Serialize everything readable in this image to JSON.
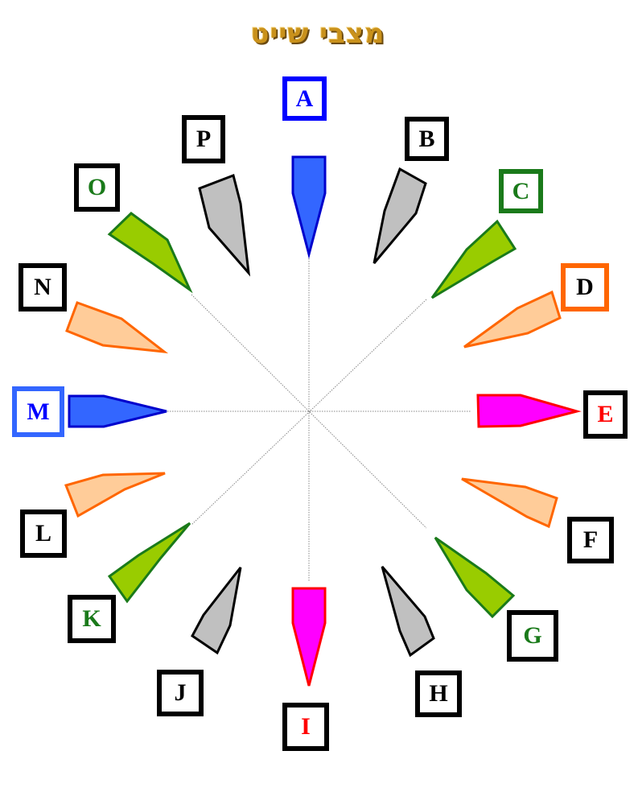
{
  "title": "מצבי שייט",
  "colors": {
    "blue": "#3366ff",
    "gray": "#c0c0c0",
    "green": "#99cc00",
    "green_stroke": "#1a7a1a",
    "orange_fill": "#ffcc99",
    "orange_stroke": "#ff6600",
    "magenta": "#ff00ff",
    "red": "#ff0000",
    "black": "#000000"
  },
  "positions": [
    {
      "letter": "A",
      "letter_color": "#0000ff",
      "box_color": "#0000ff",
      "fill": "#3366ff",
      "stroke": "#0000cc"
    },
    {
      "letter": "B",
      "letter_color": "#000000",
      "box_color": "#000000",
      "fill": "#c0c0c0",
      "stroke": "#000000"
    },
    {
      "letter": "C",
      "letter_color": "#1a7a1a",
      "box_color": "#1a7a1a",
      "fill": "#99cc00",
      "stroke": "#1a7a1a"
    },
    {
      "letter": "D",
      "letter_color": "#000000",
      "box_color": "#ff6600",
      "fill": "#ffcc99",
      "stroke": "#ff6600"
    },
    {
      "letter": "E",
      "letter_color": "#ff0000",
      "box_color": "#000000",
      "fill": "#ff00ff",
      "stroke": "#ff0000"
    },
    {
      "letter": "F",
      "letter_color": "#000000",
      "box_color": "#000000",
      "fill": "#ffcc99",
      "stroke": "#ff6600"
    },
    {
      "letter": "G",
      "letter_color": "#1a7a1a",
      "box_color": "#000000",
      "fill": "#99cc00",
      "stroke": "#1a7a1a"
    },
    {
      "letter": "H",
      "letter_color": "#000000",
      "box_color": "#000000",
      "fill": "#c0c0c0",
      "stroke": "#000000"
    },
    {
      "letter": "I",
      "letter_color": "#ff0000",
      "box_color": "#000000",
      "fill": "#ff00ff",
      "stroke": "#ff0000"
    },
    {
      "letter": "J",
      "letter_color": "#000000",
      "box_color": "#000000",
      "fill": "#c0c0c0",
      "stroke": "#000000"
    },
    {
      "letter": "K",
      "letter_color": "#1a7a1a",
      "box_color": "#000000",
      "fill": "#99cc00",
      "stroke": "#1a7a1a"
    },
    {
      "letter": "L",
      "letter_color": "#000000",
      "box_color": "#000000",
      "fill": "#ffcc99",
      "stroke": "#ff6600"
    },
    {
      "letter": "M",
      "letter_color": "#0000ff",
      "box_color": "#3366ff",
      "fill": "#3366ff",
      "stroke": "#0000cc"
    },
    {
      "letter": "N",
      "letter_color": "#000000",
      "box_color": "#000000",
      "fill": "#ffcc99",
      "stroke": "#ff6600"
    },
    {
      "letter": "O",
      "letter_color": "#1a7a1a",
      "box_color": "#000000",
      "fill": "#99cc00",
      "stroke": "#1a7a1a"
    },
    {
      "letter": "P",
      "letter_color": "#000000",
      "box_color": "#000000",
      "fill": "#c0c0c0",
      "stroke": "#000000"
    }
  ]
}
